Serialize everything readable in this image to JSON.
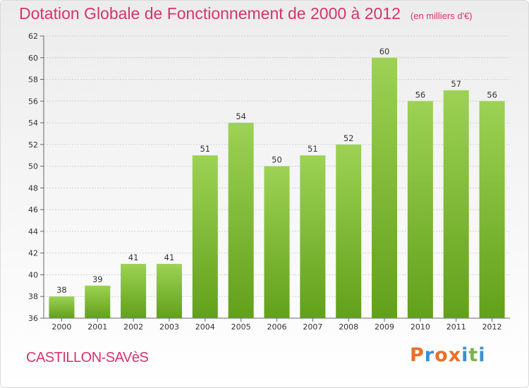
{
  "header": {
    "title": "Dotation Globale de Fonctionnement de 2000 à 2012",
    "subtitle": "(en milliers d'€)"
  },
  "footer": {
    "commune": "CASTILLON-SAVèS",
    "logo_text": "Proxiti",
    "logo_colors": [
      "#e8702a",
      "#3b8fd4",
      "#e8702a",
      "#e8702a",
      "#3b8fd4",
      "#7ab648",
      "#3b8fd4"
    ]
  },
  "colors": {
    "bar_top": "#9dd254",
    "bar_bottom": "#62a01a",
    "accent": "#d6336c",
    "grid": "#cfcfcf"
  },
  "chart_data": {
    "type": "bar",
    "title": "Dotation Globale de Fonctionnement de 2000 à 2012",
    "subtitle": "(en milliers d'€)",
    "categories": [
      "2000",
      "2001",
      "2002",
      "2003",
      "2004",
      "2005",
      "2006",
      "2007",
      "2008",
      "2009",
      "2010",
      "2011",
      "2012"
    ],
    "values": [
      38,
      39,
      41,
      41,
      51,
      54,
      50,
      51,
      52,
      60,
      56,
      57,
      56
    ],
    "ylim": [
      36,
      62
    ],
    "yticks": [
      36,
      38,
      40,
      42,
      44,
      46,
      48,
      50,
      52,
      54,
      56,
      58,
      60,
      62
    ],
    "grid": true,
    "xlabel": "",
    "ylabel": ""
  }
}
